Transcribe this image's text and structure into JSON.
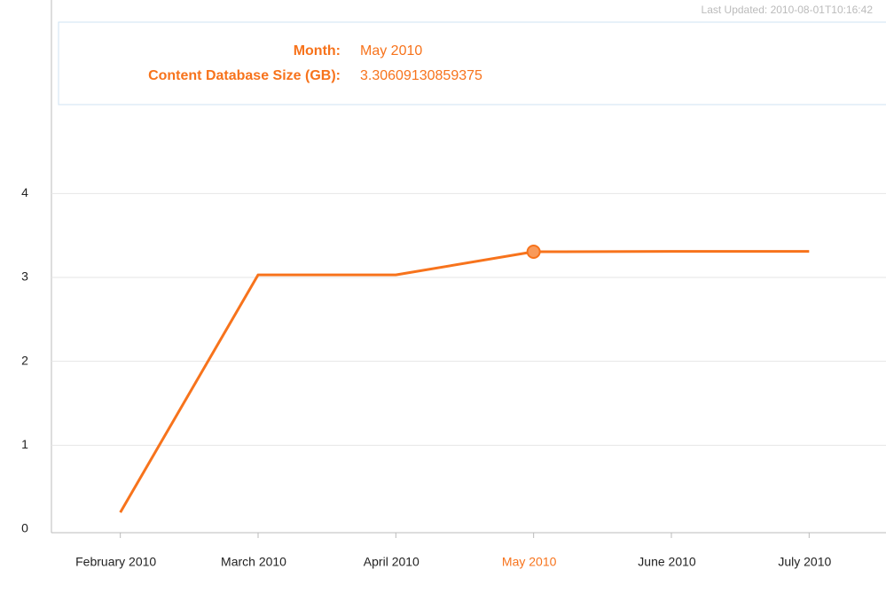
{
  "last_updated": "Last Updated: 2010-08-01T10:16:42",
  "tooltip": {
    "month_label": "Month:",
    "value_label": "Content Database Size (GB):"
  },
  "chart_data": {
    "type": "line",
    "categories": [
      "February 2010",
      "March 2010",
      "April 2010",
      "May 2010",
      "June 2010",
      "July 2010"
    ],
    "series": [
      {
        "name": "Content Database Size (GB)",
        "color": "#f7731c",
        "values": [
          0.2,
          3.03,
          3.03,
          3.30609130859375,
          3.31,
          3.31
        ]
      }
    ],
    "highlight_index": 3,
    "ylim": [
      0,
      6
    ],
    "yticks": [
      0,
      1,
      2,
      3,
      4
    ],
    "grid": true
  }
}
